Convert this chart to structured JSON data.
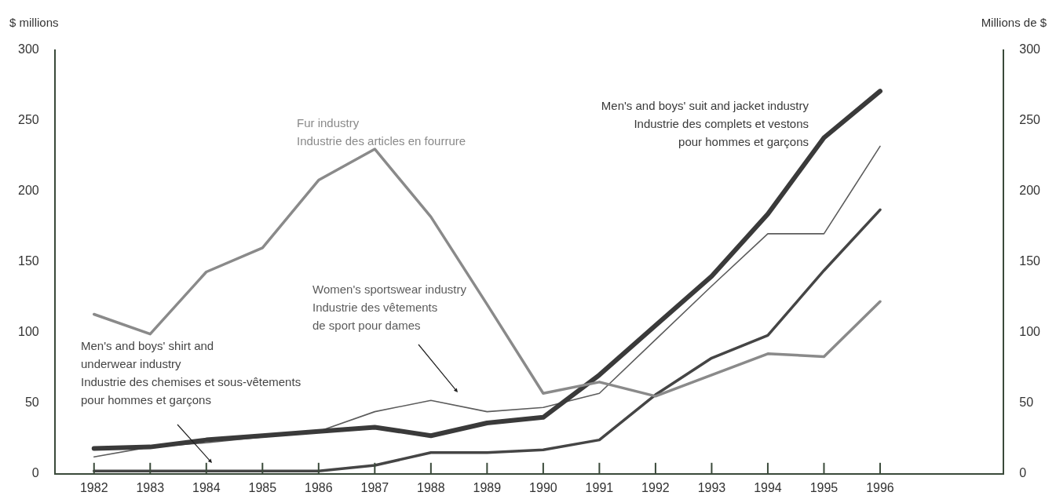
{
  "chart_data": {
    "type": "line",
    "ylabel": "$ millions",
    "y2label": "Millions de $",
    "x": [
      1982,
      1983,
      1984,
      1985,
      1986,
      1987,
      1988,
      1989,
      1990,
      1991,
      1992,
      1993,
      1994,
      1995,
      1996
    ],
    "xlim": [
      1981.3,
      1998.2
    ],
    "xticks": [
      1982,
      1983,
      1984,
      1985,
      1986,
      1987,
      1988,
      1989,
      1990,
      1991,
      1992,
      1993,
      1994,
      1995,
      1996
    ],
    "ylim": [
      0,
      300
    ],
    "yticks": [
      0,
      50,
      100,
      150,
      200,
      250,
      300
    ],
    "y2lim": [
      0,
      300
    ],
    "y2ticks": [
      0,
      50,
      100,
      150,
      200,
      250,
      300
    ],
    "grid": false,
    "legend": false,
    "marker": "none",
    "line_style": "solid",
    "series": [
      {
        "name": "Fur industry\nIndustrie des articles en fourrure",
        "color": "#8a8a8a",
        "values": [
          113,
          99,
          143,
          160,
          208,
          230,
          182,
          120,
          57,
          65,
          55,
          70,
          85,
          83,
          122
        ]
      },
      {
        "name": "Men's and boys' suit and jacket industry\nIndustrie des complets et vestons\npour hommes et garçons",
        "color": "#3a3a3a",
        "values": [
          18,
          19,
          24,
          27,
          30,
          33,
          27,
          36,
          40,
          70,
          105,
          140,
          184,
          238,
          271
        ]
      },
      {
        "name": "Women's sportswear industry\nIndustrie des vêtements\nde sport pour dames",
        "color": "#5c5c5c",
        "values": [
          12,
          19,
          22,
          26,
          30,
          44,
          52,
          44,
          47,
          57,
          95,
          133,
          170,
          170,
          232
        ]
      },
      {
        "name": "Men's and boys' shirt and\nunderwear industry\nIndustrie des chemises et sous-vêtements\npour hommes et garçons",
        "color": "#454545",
        "values": [
          2,
          2,
          2,
          2,
          2,
          6,
          15,
          15,
          17,
          24,
          56,
          82,
          98,
          144,
          187
        ]
      }
    ]
  }
}
